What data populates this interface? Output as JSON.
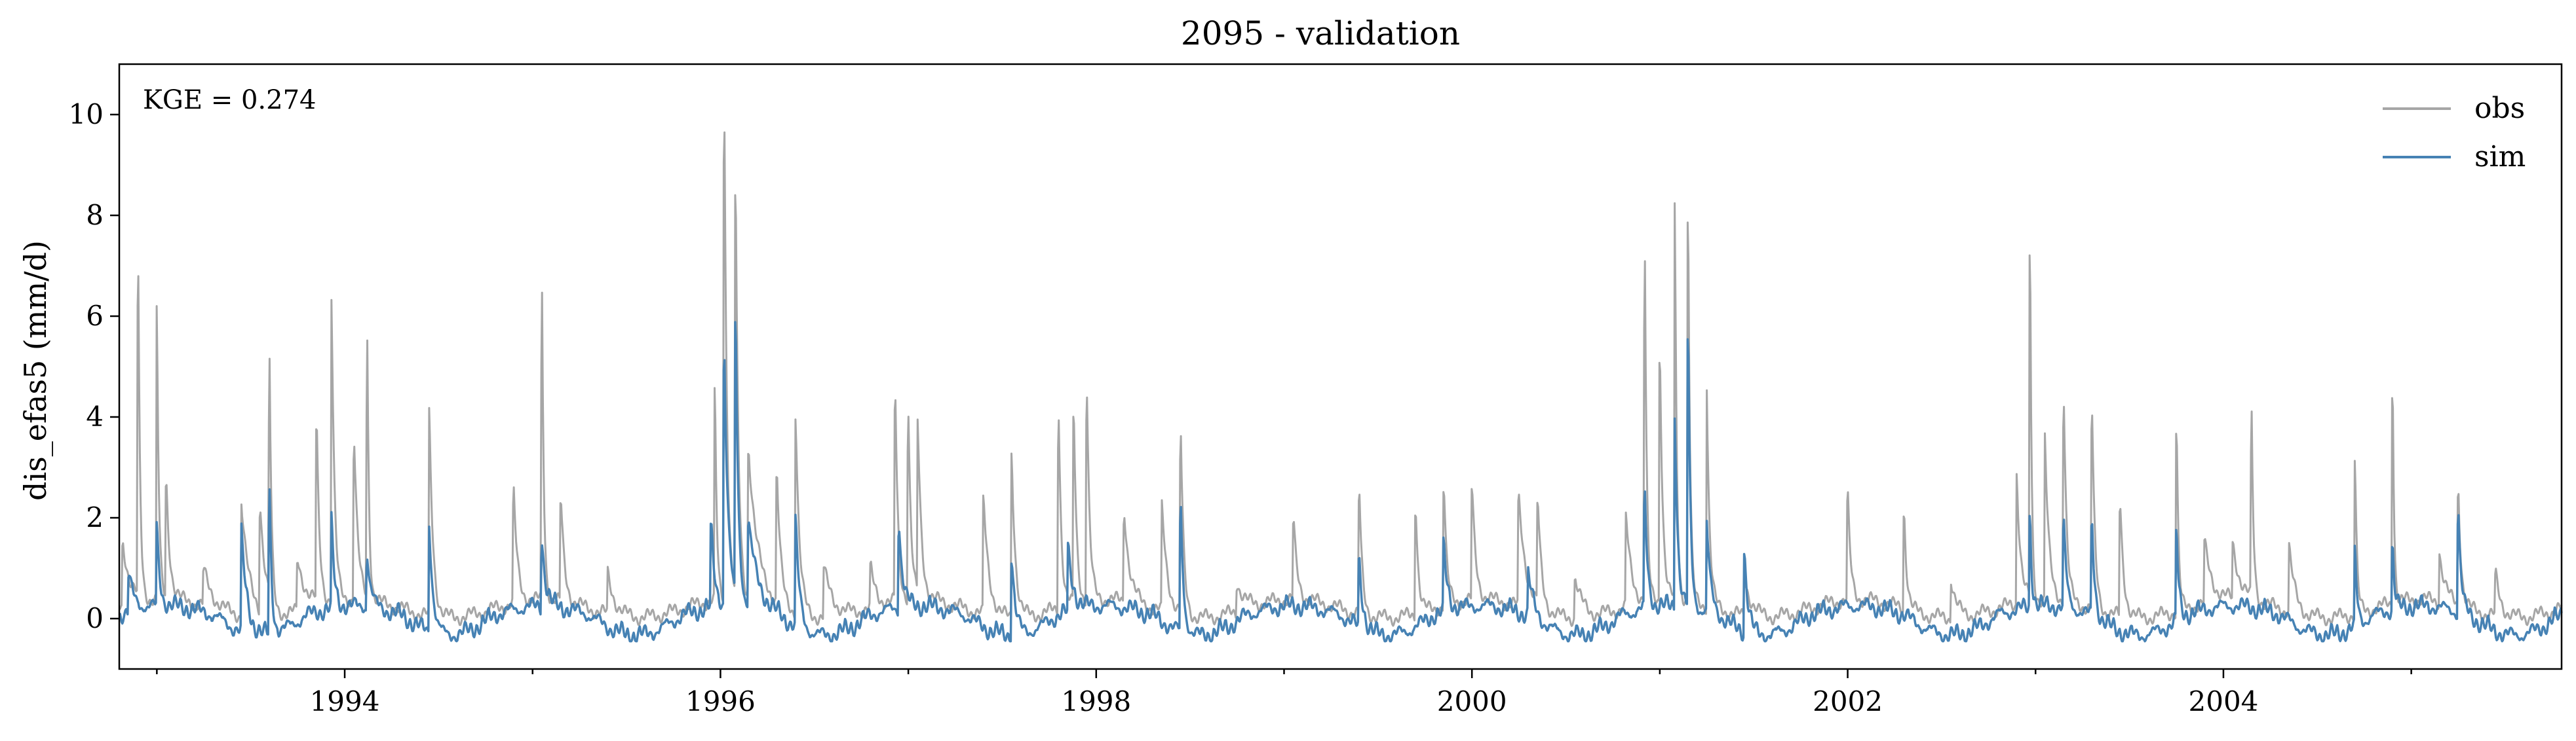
{
  "chart_data": {
    "type": "line",
    "title": "2095 - validation",
    "xlabel": "",
    "ylabel": "dis_efas5 (mm/d)",
    "xlim": [
      1992.8,
      2005.8
    ],
    "ylim": [
      -1.0,
      11.0
    ],
    "x_ticks": [
      1994,
      1996,
      1998,
      2000,
      2002,
      2004
    ],
    "x_tick_labels": [
      "1994",
      "1996",
      "1998",
      "2000",
      "2002",
      "2004"
    ],
    "y_ticks": [
      0,
      2,
      4,
      6,
      8,
      10
    ],
    "y_tick_labels": [
      "0",
      "2",
      "4",
      "6",
      "8",
      "10"
    ],
    "grid": false,
    "legend_position": "top-right",
    "annotation": "KGE = 0.274",
    "series": [
      {
        "name": "obs",
        "color": "#a6a6a6",
        "base": 0.2,
        "peaks": [
          [
            1992.82,
            1.5,
            0.04
          ],
          [
            1992.9,
            7.4,
            0.01
          ],
          [
            1993.0,
            6.5,
            0.01
          ],
          [
            1993.05,
            2.6,
            0.02
          ],
          [
            1993.25,
            0.9,
            0.05
          ],
          [
            1993.45,
            2.5,
            0.04
          ],
          [
            1993.55,
            2.3,
            0.03
          ],
          [
            1993.6,
            5.0,
            0.01
          ],
          [
            1993.75,
            1.2,
            0.05
          ],
          [
            1993.85,
            3.9,
            0.015
          ],
          [
            1993.93,
            6.5,
            0.015
          ],
          [
            1994.05,
            3.5,
            0.02
          ],
          [
            1994.12,
            5.4,
            0.01
          ],
          [
            1994.45,
            4.3,
            0.02
          ],
          [
            1994.9,
            2.4,
            0.02
          ],
          [
            1995.05,
            6.6,
            0.01
          ],
          [
            1995.15,
            2.3,
            0.02
          ],
          [
            1995.4,
            1.0,
            0.04
          ],
          [
            1995.97,
            4.8,
            0.01
          ],
          [
            1996.02,
            10.5,
            0.015
          ],
          [
            1996.08,
            8.8,
            0.015
          ],
          [
            1996.15,
            3.2,
            0.05
          ],
          [
            1996.3,
            2.9,
            0.02
          ],
          [
            1996.4,
            4.3,
            0.02
          ],
          [
            1996.55,
            1.2,
            0.05
          ],
          [
            1996.8,
            1.0,
            0.03
          ],
          [
            1996.93,
            4.6,
            0.015
          ],
          [
            1997.0,
            4.0,
            0.015
          ],
          [
            1997.05,
            3.7,
            0.02
          ],
          [
            1997.4,
            2.5,
            0.03
          ],
          [
            1997.55,
            3.6,
            0.02
          ],
          [
            1997.8,
            4.3,
            0.015
          ],
          [
            1997.88,
            4.3,
            0.015
          ],
          [
            1997.95,
            4.6,
            0.015
          ],
          [
            1998.15,
            2.0,
            0.03
          ],
          [
            1998.35,
            2.3,
            0.03
          ],
          [
            1998.45,
            3.9,
            0.015
          ],
          [
            1998.75,
            0.8,
            0.04
          ],
          [
            1999.05,
            1.8,
            0.02
          ],
          [
            1999.4,
            2.8,
            0.015
          ],
          [
            1999.7,
            2.6,
            0.015
          ],
          [
            1999.85,
            2.8,
            0.015
          ],
          [
            2000.0,
            2.5,
            0.02
          ],
          [
            2000.25,
            2.3,
            0.04
          ],
          [
            2000.35,
            2.3,
            0.02
          ],
          [
            2000.55,
            1.0,
            0.04
          ],
          [
            2000.82,
            2.0,
            0.03
          ],
          [
            2000.92,
            7.6,
            0.01
          ],
          [
            2001.0,
            5.6,
            0.015
          ],
          [
            2001.08,
            8.4,
            0.01
          ],
          [
            2001.15,
            9.0,
            0.01
          ],
          [
            2001.25,
            4.6,
            0.015
          ],
          [
            2001.45,
            1.0,
            0.04
          ],
          [
            2002.0,
            2.4,
            0.015
          ],
          [
            2002.3,
            2.3,
            0.015
          ],
          [
            2002.55,
            1.0,
            0.03
          ],
          [
            2002.9,
            2.9,
            0.02
          ],
          [
            2002.97,
            8.4,
            0.008
          ],
          [
            2003.05,
            3.5,
            0.02
          ],
          [
            2003.15,
            4.5,
            0.015
          ],
          [
            2003.3,
            4.4,
            0.015
          ],
          [
            2003.45,
            2.5,
            0.02
          ],
          [
            2003.75,
            4.4,
            0.01
          ],
          [
            2003.9,
            1.4,
            0.04
          ],
          [
            2004.05,
            1.3,
            0.04
          ],
          [
            2004.15,
            4.0,
            0.01
          ],
          [
            2004.35,
            1.5,
            0.03
          ],
          [
            2004.7,
            3.6,
            0.01
          ],
          [
            2004.9,
            5.5,
            0.008
          ],
          [
            2005.15,
            1.2,
            0.03
          ],
          [
            2005.25,
            2.7,
            0.015
          ],
          [
            2005.45,
            1.0,
            0.03
          ]
        ]
      },
      {
        "name": "sim",
        "color": "#4682b4",
        "base": 0.15,
        "peaks": [
          [
            1992.85,
            0.9,
            0.03
          ],
          [
            1993.0,
            1.8,
            0.015
          ],
          [
            1993.45,
            2.1,
            0.03
          ],
          [
            1993.6,
            3.0,
            0.012
          ],
          [
            1993.93,
            1.9,
            0.015
          ],
          [
            1994.12,
            1.2,
            0.02
          ],
          [
            1994.45,
            2.4,
            0.02
          ],
          [
            1995.05,
            1.5,
            0.02
          ],
          [
            1995.95,
            1.8,
            0.02
          ],
          [
            1996.02,
            5.4,
            0.02
          ],
          [
            1996.08,
            6.0,
            0.015
          ],
          [
            1996.15,
            1.8,
            0.05
          ],
          [
            1996.4,
            2.3,
            0.02
          ],
          [
            1996.95,
            1.9,
            0.02
          ],
          [
            1997.55,
            1.8,
            0.02
          ],
          [
            1997.85,
            1.4,
            0.03
          ],
          [
            1998.45,
            2.7,
            0.015
          ],
          [
            1999.4,
            1.5,
            0.02
          ],
          [
            1999.85,
            1.5,
            0.02
          ],
          [
            2000.3,
            1.0,
            0.03
          ],
          [
            2000.92,
            2.5,
            0.015
          ],
          [
            2001.08,
            4.2,
            0.015
          ],
          [
            2001.15,
            6.1,
            0.012
          ],
          [
            2001.25,
            1.9,
            0.02
          ],
          [
            2001.45,
            1.8,
            0.02
          ],
          [
            2002.97,
            2.2,
            0.01
          ],
          [
            2003.15,
            1.9,
            0.015
          ],
          [
            2003.3,
            2.1,
            0.015
          ],
          [
            2003.75,
            2.1,
            0.012
          ],
          [
            2004.7,
            1.7,
            0.012
          ],
          [
            2004.9,
            1.6,
            0.01
          ],
          [
            2005.25,
            2.3,
            0.015
          ]
        ]
      }
    ]
  }
}
